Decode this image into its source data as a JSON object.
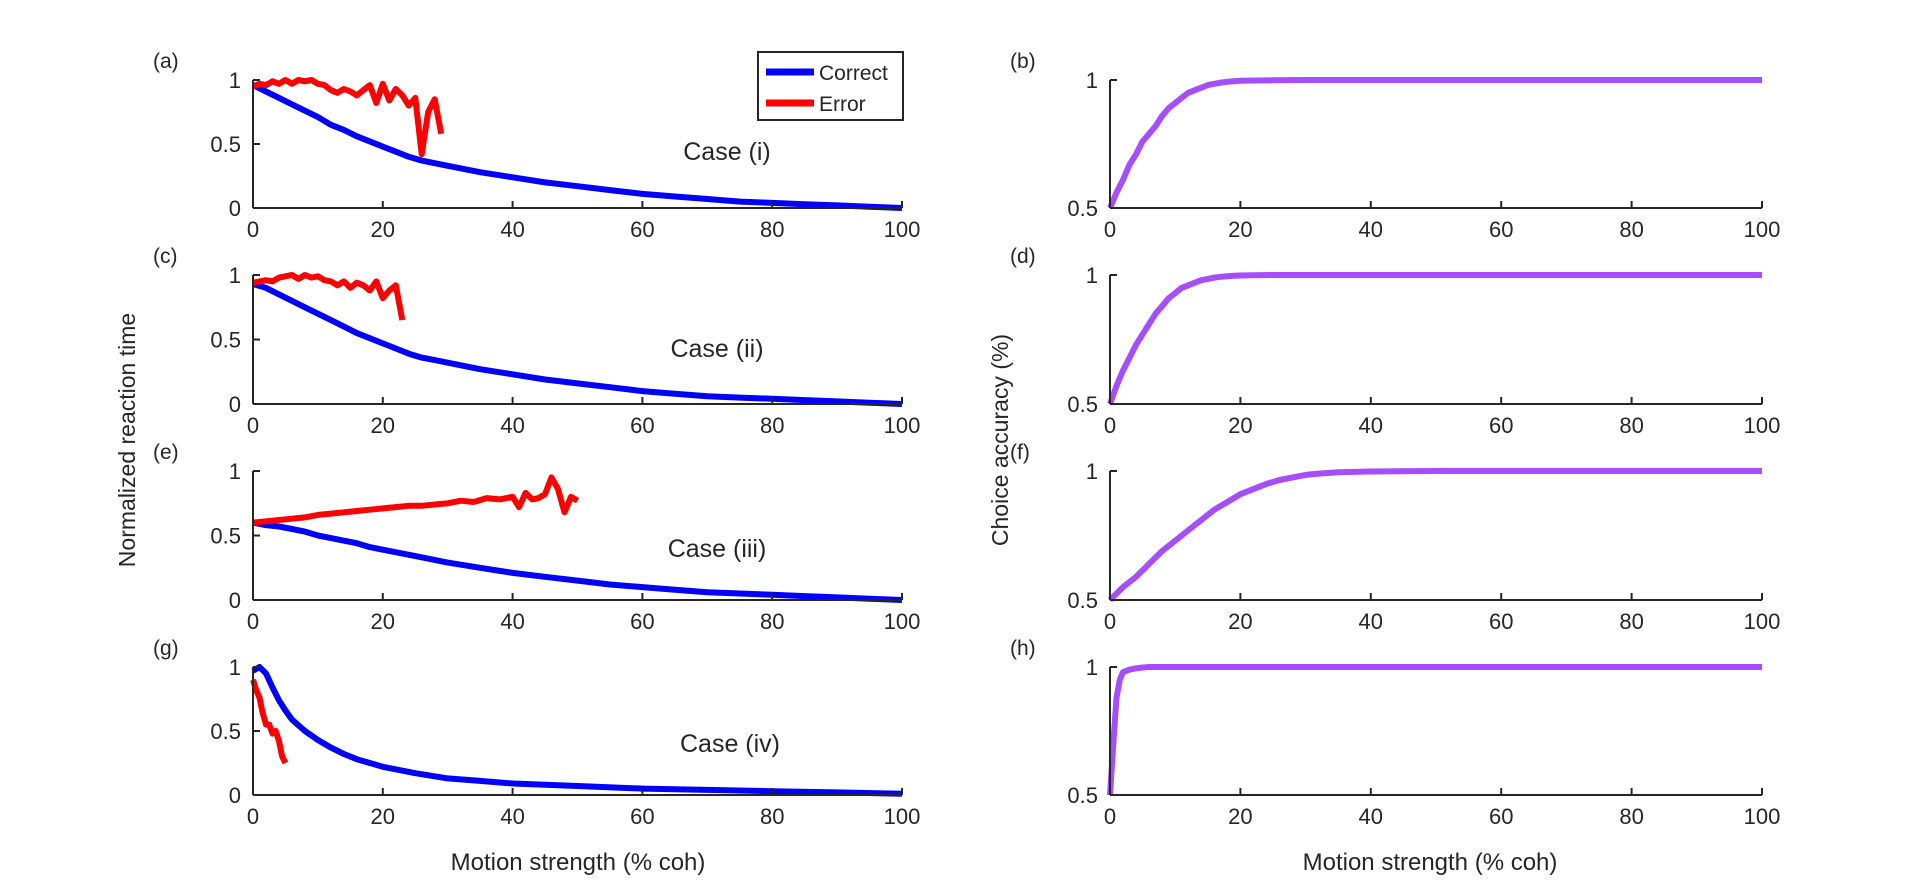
{
  "figure": {
    "left_ylabel": "Normalized reaction time",
    "right_ylabel": "Choice accuracy (%)",
    "xlabel": "Motion strength (% coh)"
  },
  "legend": {
    "entries": [
      {
        "label": "Correct",
        "color": "#0000ff"
      },
      {
        "label": "Error",
        "color": "#ff0000"
      }
    ],
    "placement": "inside top-right of panel (a)"
  },
  "colors": {
    "correct": "#0000ff",
    "error": "#ff0000",
    "accuracy": "#a64dff",
    "axis": "#262626"
  },
  "chart_data": [
    {
      "type": "line",
      "panel_label": "(a)",
      "annotation": "Case (i)",
      "xlim": [
        0,
        100
      ],
      "ylim": [
        0,
        1
      ],
      "xticks": [
        0,
        20,
        40,
        60,
        80,
        100
      ],
      "yticks": [
        0,
        0.5,
        1
      ],
      "ytick_labels": [
        "0",
        "0.5",
        "1"
      ],
      "series": [
        {
          "name": "Correct",
          "color": "#0000ff",
          "x": [
            0,
            2,
            4,
            6,
            8,
            10,
            12,
            14,
            16,
            18,
            20,
            22,
            24,
            26,
            28,
            30,
            35,
            40,
            45,
            50,
            55,
            60,
            65,
            70,
            75,
            80,
            85,
            90,
            95,
            100
          ],
          "y": [
            0.96,
            0.91,
            0.86,
            0.81,
            0.76,
            0.71,
            0.65,
            0.61,
            0.56,
            0.52,
            0.48,
            0.44,
            0.4,
            0.37,
            0.35,
            0.33,
            0.28,
            0.24,
            0.2,
            0.17,
            0.14,
            0.11,
            0.09,
            0.07,
            0.05,
            0.04,
            0.03,
            0.02,
            0.01,
            0.0
          ]
        },
        {
          "name": "Error",
          "color": "#ff0000",
          "x": [
            0,
            1,
            2,
            3,
            4,
            5,
            6,
            7,
            8,
            9,
            10,
            11,
            12,
            13,
            14,
            15,
            16,
            17,
            18,
            19,
            20,
            21,
            22,
            23,
            24,
            25,
            26,
            27,
            28,
            29
          ],
          "y": [
            0.95,
            0.97,
            0.96,
            0.99,
            0.97,
            1.0,
            0.97,
            1.0,
            0.99,
            1.0,
            0.97,
            0.96,
            0.92,
            0.9,
            0.93,
            0.91,
            0.88,
            0.92,
            0.96,
            0.82,
            0.97,
            0.84,
            0.93,
            0.88,
            0.8,
            0.86,
            0.42,
            0.75,
            0.85,
            0.58
          ]
        }
      ]
    },
    {
      "type": "line",
      "panel_label": "(b)",
      "xlim": [
        0,
        100
      ],
      "ylim": [
        0.5,
        1
      ],
      "xticks": [
        0,
        20,
        40,
        60,
        80,
        100
      ],
      "yticks": [
        0.5,
        1
      ],
      "ytick_labels": [
        "0.5",
        "1"
      ],
      "series": [
        {
          "color": "#a64dff",
          "x": [
            0,
            1,
            2,
            3,
            4,
            5,
            6,
            7,
            8,
            9,
            10,
            11,
            12,
            13,
            14,
            15,
            16,
            17,
            18,
            19,
            20,
            22,
            25,
            30,
            40,
            50,
            60,
            70,
            80,
            90,
            100
          ],
          "y": [
            0.5,
            0.56,
            0.61,
            0.67,
            0.71,
            0.76,
            0.79,
            0.82,
            0.86,
            0.89,
            0.91,
            0.93,
            0.95,
            0.96,
            0.97,
            0.98,
            0.985,
            0.99,
            0.993,
            0.995,
            0.997,
            0.998,
            0.999,
            1.0,
            1.0,
            1.0,
            1.0,
            1.0,
            1.0,
            1.0,
            1.0
          ]
        }
      ]
    },
    {
      "type": "line",
      "panel_label": "(c)",
      "annotation": "Case (ii)",
      "xlim": [
        0,
        100
      ],
      "ylim": [
        0,
        1
      ],
      "xticks": [
        0,
        20,
        40,
        60,
        80,
        100
      ],
      "yticks": [
        0,
        0.5,
        1
      ],
      "ytick_labels": [
        "0",
        "0.5",
        "1"
      ],
      "series": [
        {
          "name": "Correct",
          "color": "#0000ff",
          "x": [
            0,
            2,
            4,
            6,
            8,
            10,
            12,
            14,
            16,
            18,
            20,
            22,
            24,
            26,
            28,
            30,
            35,
            40,
            45,
            50,
            55,
            60,
            65,
            70,
            75,
            80,
            85,
            90,
            95,
            100
          ],
          "y": [
            0.93,
            0.9,
            0.85,
            0.8,
            0.75,
            0.7,
            0.65,
            0.6,
            0.55,
            0.51,
            0.47,
            0.43,
            0.39,
            0.36,
            0.34,
            0.32,
            0.27,
            0.23,
            0.19,
            0.16,
            0.13,
            0.1,
            0.08,
            0.06,
            0.05,
            0.04,
            0.03,
            0.02,
            0.01,
            0.0
          ]
        },
        {
          "name": "Error",
          "color": "#ff0000",
          "x": [
            0,
            1,
            2,
            3,
            4,
            5,
            6,
            7,
            8,
            9,
            10,
            11,
            12,
            13,
            14,
            15,
            16,
            17,
            18,
            19,
            20,
            21,
            22,
            23
          ],
          "y": [
            0.94,
            0.95,
            0.96,
            0.95,
            0.98,
            0.99,
            1.0,
            0.97,
            1.0,
            0.98,
            0.99,
            0.96,
            0.95,
            0.92,
            0.95,
            0.9,
            0.94,
            0.92,
            0.88,
            0.95,
            0.82,
            0.88,
            0.92,
            0.65
          ]
        }
      ]
    },
    {
      "type": "line",
      "panel_label": "(d)",
      "xlim": [
        0,
        100
      ],
      "ylim": [
        0.5,
        1
      ],
      "xticks": [
        0,
        20,
        40,
        60,
        80,
        100
      ],
      "yticks": [
        0.5,
        1
      ],
      "ytick_labels": [
        "0.5",
        "1"
      ],
      "series": [
        {
          "color": "#a64dff",
          "x": [
            0,
            1,
            2,
            3,
            4,
            5,
            6,
            7,
            8,
            9,
            10,
            11,
            12,
            13,
            14,
            15,
            16,
            17,
            18,
            19,
            20,
            22,
            25,
            30,
            40,
            50,
            60,
            70,
            80,
            90,
            100
          ],
          "y": [
            0.5,
            0.57,
            0.63,
            0.68,
            0.73,
            0.77,
            0.81,
            0.85,
            0.88,
            0.91,
            0.93,
            0.95,
            0.96,
            0.97,
            0.98,
            0.985,
            0.99,
            0.993,
            0.995,
            0.997,
            0.998,
            0.999,
            1.0,
            1.0,
            1.0,
            1.0,
            1.0,
            1.0,
            1.0,
            1.0,
            1.0
          ]
        }
      ]
    },
    {
      "type": "line",
      "panel_label": "(e)",
      "annotation": "Case (iii)",
      "xlim": [
        0,
        100
      ],
      "ylim": [
        0,
        1
      ],
      "xticks": [
        0,
        20,
        40,
        60,
        80,
        100
      ],
      "yticks": [
        0,
        0.5,
        1
      ],
      "ytick_labels": [
        "0",
        "0.5",
        "1"
      ],
      "series": [
        {
          "name": "Correct",
          "color": "#0000ff",
          "x": [
            0,
            2,
            4,
            6,
            8,
            10,
            12,
            14,
            16,
            18,
            20,
            25,
            30,
            35,
            40,
            45,
            50,
            55,
            60,
            65,
            70,
            75,
            80,
            85,
            90,
            95,
            100
          ],
          "y": [
            0.6,
            0.58,
            0.57,
            0.55,
            0.53,
            0.5,
            0.48,
            0.46,
            0.44,
            0.41,
            0.39,
            0.34,
            0.29,
            0.25,
            0.21,
            0.18,
            0.15,
            0.12,
            0.1,
            0.08,
            0.06,
            0.05,
            0.04,
            0.03,
            0.02,
            0.01,
            0.0
          ]
        },
        {
          "name": "Error",
          "color": "#ff0000",
          "x": [
            0,
            2,
            4,
            6,
            8,
            10,
            12,
            14,
            16,
            18,
            20,
            22,
            24,
            26,
            28,
            30,
            32,
            34,
            36,
            38,
            40,
            41,
            42,
            43,
            44,
            45,
            46,
            47,
            48,
            49,
            50
          ],
          "y": [
            0.6,
            0.61,
            0.62,
            0.63,
            0.64,
            0.66,
            0.67,
            0.68,
            0.69,
            0.7,
            0.71,
            0.72,
            0.73,
            0.73,
            0.74,
            0.75,
            0.77,
            0.76,
            0.79,
            0.78,
            0.8,
            0.72,
            0.83,
            0.78,
            0.79,
            0.82,
            0.95,
            0.86,
            0.68,
            0.8,
            0.77
          ]
        }
      ]
    },
    {
      "type": "line",
      "panel_label": "(f)",
      "xlim": [
        0,
        100
      ],
      "ylim": [
        0.5,
        1
      ],
      "xticks": [
        0,
        20,
        40,
        60,
        80,
        100
      ],
      "yticks": [
        0.5,
        1
      ],
      "ytick_labels": [
        "0.5",
        "1"
      ],
      "series": [
        {
          "color": "#a64dff",
          "x": [
            0,
            2,
            4,
            6,
            8,
            10,
            12,
            14,
            16,
            18,
            20,
            22,
            24,
            26,
            28,
            30,
            32,
            35,
            40,
            50,
            60,
            70,
            80,
            90,
            100
          ],
          "y": [
            0.5,
            0.55,
            0.59,
            0.64,
            0.69,
            0.73,
            0.77,
            0.81,
            0.85,
            0.88,
            0.91,
            0.93,
            0.95,
            0.965,
            0.975,
            0.985,
            0.99,
            0.995,
            0.998,
            1.0,
            1.0,
            1.0,
            1.0,
            1.0,
            1.0
          ]
        }
      ]
    },
    {
      "type": "line",
      "panel_label": "(g)",
      "annotation": "Case (iv)",
      "xlim": [
        0,
        100
      ],
      "ylim": [
        0,
        1
      ],
      "xticks": [
        0,
        20,
        40,
        60,
        80,
        100
      ],
      "yticks": [
        0,
        0.5,
        1
      ],
      "ytick_labels": [
        "0",
        "0.5",
        "1"
      ],
      "series": [
        {
          "name": "Correct",
          "color": "#0000ff",
          "x": [
            0,
            1,
            2,
            3,
            4,
            5,
            6,
            8,
            10,
            12,
            14,
            16,
            18,
            20,
            25,
            30,
            35,
            40,
            50,
            60,
            70,
            80,
            90,
            100
          ],
          "y": [
            0.97,
            1.0,
            0.95,
            0.84,
            0.74,
            0.66,
            0.59,
            0.5,
            0.43,
            0.37,
            0.32,
            0.28,
            0.25,
            0.22,
            0.17,
            0.13,
            0.11,
            0.09,
            0.07,
            0.05,
            0.04,
            0.03,
            0.02,
            0.01
          ]
        },
        {
          "name": "Error",
          "color": "#ff0000",
          "x": [
            0,
            0.5,
            1,
            1.5,
            2,
            2.5,
            3,
            3.5,
            4,
            4.5,
            5
          ],
          "y": [
            0.9,
            0.82,
            0.76,
            0.64,
            0.55,
            0.55,
            0.48,
            0.5,
            0.42,
            0.3,
            0.25
          ]
        }
      ]
    },
    {
      "type": "line",
      "panel_label": "(h)",
      "xlim": [
        0,
        100
      ],
      "ylim": [
        0.5,
        1
      ],
      "xticks": [
        0,
        20,
        40,
        60,
        80,
        100
      ],
      "yticks": [
        0.5,
        1
      ],
      "ytick_labels": [
        "0.5",
        "1"
      ],
      "series": [
        {
          "color": "#a64dff",
          "x": [
            0,
            0.5,
            1,
            1.5,
            2,
            3,
            4,
            5,
            6,
            8,
            10,
            20,
            40,
            60,
            80,
            100
          ],
          "y": [
            0.5,
            0.7,
            0.88,
            0.95,
            0.98,
            0.99,
            0.995,
            0.998,
            1.0,
            1.0,
            1.0,
            1.0,
            1.0,
            1.0,
            1.0,
            1.0
          ]
        }
      ]
    }
  ]
}
